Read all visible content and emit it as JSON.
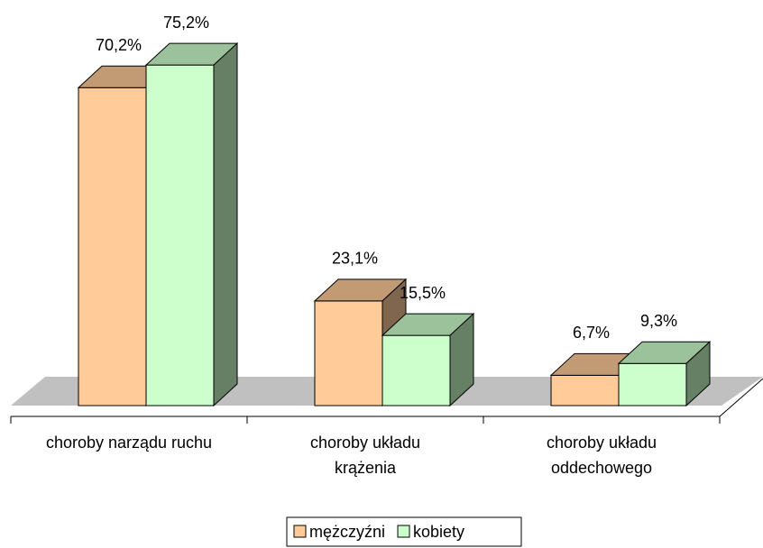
{
  "chart_data": {
    "type": "bar3d",
    "categories": [
      "choroby narządu ruchu",
      "choroby układu krążenia",
      "choroby układu oddechowego"
    ],
    "series": [
      {
        "name": "mężczyźni",
        "color": "#ffcc99",
        "values": [
          70.2,
          23.1,
          6.7
        ],
        "value_labels": [
          "70,2%",
          "23,1%",
          "6,7%"
        ]
      },
      {
        "name": "kobiety",
        "color": "#ccffcc",
        "values": [
          75.2,
          15.5,
          9.3
        ],
        "value_labels": [
          "75,2%",
          "15,5%",
          "9,3%"
        ]
      }
    ],
    "ylim": [
      0,
      80
    ],
    "legend": "bottom"
  }
}
